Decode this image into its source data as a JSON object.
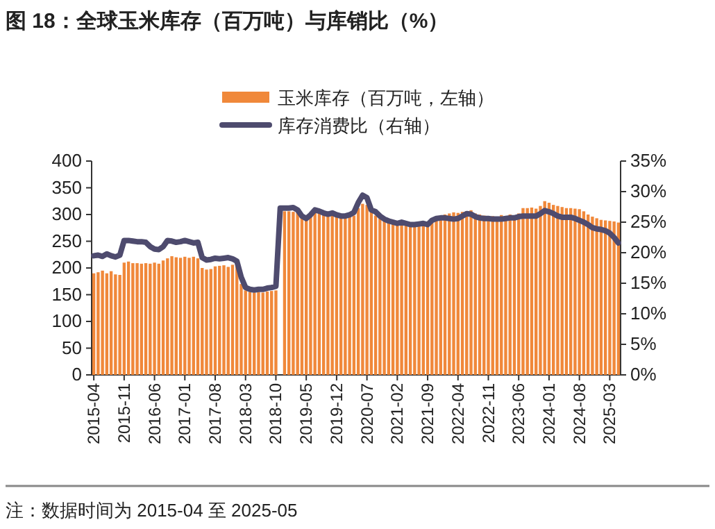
{
  "chart_data": {
    "type": "bar",
    "title": "图 18：全球玉米库存（百万吨）与库销比（%）",
    "categories": [
      "2015-04",
      null,
      null,
      null,
      null,
      null,
      null,
      "2015-11",
      null,
      null,
      null,
      null,
      null,
      null,
      "2016-06",
      null,
      null,
      null,
      null,
      null,
      null,
      "2017-01",
      null,
      null,
      null,
      null,
      null,
      null,
      "2017-08",
      null,
      null,
      null,
      null,
      null,
      null,
      "2018-03",
      null,
      null,
      null,
      null,
      null,
      null,
      "2018-10",
      null,
      null,
      null,
      null,
      null,
      null,
      "2019-05",
      null,
      null,
      null,
      null,
      null,
      null,
      "2019-12",
      null,
      null,
      null,
      null,
      null,
      null,
      "2020-07",
      null,
      null,
      null,
      null,
      null,
      null,
      "2021-02",
      null,
      null,
      null,
      null,
      null,
      null,
      "2021-09",
      null,
      null,
      null,
      null,
      null,
      null,
      "2022-04",
      null,
      null,
      null,
      null,
      null,
      null,
      "2022-11",
      null,
      null,
      null,
      null,
      null,
      null,
      "2023-06",
      null,
      null,
      null,
      null,
      null,
      null,
      "2024-01",
      null,
      null,
      null,
      null,
      null,
      null,
      "2024-08",
      null,
      null,
      null,
      null,
      null,
      null,
      "2025-03",
      null,
      null
    ],
    "series": [
      {
        "name": "玉米库存（百万吨，左轴）",
        "color": "#f0883a",
        "values": [
          190,
          192,
          195,
          190,
          194,
          188,
          187,
          210,
          212,
          209,
          209,
          208,
          209,
          208,
          210,
          208,
          214,
          218,
          222,
          220,
          219,
          221,
          219,
          221,
          218,
          200,
          197,
          198,
          203,
          204,
          205,
          202,
          206,
          204,
          170,
          158,
          155,
          154,
          155,
          154,
          156,
          157,
          158,
          null,
          306,
          306,
          305,
          308,
          300,
          295,
          300,
          304,
          305,
          303,
          300,
          298,
          300,
          297,
          296,
          297,
          298,
          312,
          320,
          318,
          305,
          298,
          293,
          288,
          285,
          283,
          282,
          283,
          282,
          280,
          281,
          282,
          283,
          283,
          290,
          295,
          298,
          300,
          302,
          304,
          303,
          305,
          306,
          308,
          302,
          300,
          298,
          297,
          297,
          296,
          299,
          296,
          300,
          298,
          302,
          312,
          312,
          313,
          311,
          316,
          325,
          322,
          318,
          316,
          314,
          312,
          312,
          311,
          310,
          306,
          300,
          296,
          293,
          290,
          289,
          288,
          287,
          285
        ]
      },
      {
        "name": "库存消费比（右轴）",
        "type": "line",
        "axis": "y2",
        "color": "#4e4b6e",
        "values": [
          19.5,
          19.6,
          19.4,
          19.8,
          19.5,
          19.3,
          19.6,
          22.0,
          22.0,
          21.9,
          21.8,
          21.8,
          21.7,
          21.0,
          20.6,
          20.5,
          21.0,
          22.0,
          21.9,
          21.7,
          21.8,
          22.0,
          21.8,
          21.6,
          21.7,
          19.2,
          18.8,
          18.9,
          19.1,
          19.0,
          19.1,
          19.2,
          19.0,
          18.6,
          16.0,
          14.3,
          14.0,
          13.9,
          14.0,
          14.0,
          14.2,
          14.3,
          14.5,
          27.3,
          27.3,
          27.3,
          27.4,
          27.0,
          26.0,
          25.6,
          26.2,
          27.0,
          26.8,
          26.5,
          26.3,
          26.5,
          26.2,
          26.0,
          26.0,
          26.2,
          26.6,
          28.2,
          29.4,
          29.0,
          27.0,
          26.7,
          26.0,
          25.5,
          25.2,
          25.0,
          24.8,
          25.0,
          24.8,
          24.6,
          24.6,
          24.7,
          24.8,
          24.6,
          25.3,
          25.6,
          25.7,
          25.7,
          25.6,
          25.5,
          25.6,
          26.0,
          26.4,
          26.3,
          25.9,
          25.7,
          25.6,
          25.6,
          25.5,
          25.5,
          25.5,
          25.6,
          25.7,
          25.7,
          25.9,
          26.0,
          26.0,
          26.0,
          26.0,
          26.4,
          26.9,
          26.7,
          26.4,
          26.0,
          25.8,
          25.8,
          25.8,
          25.6,
          25.3,
          25.0,
          24.6,
          24.1,
          23.9,
          23.8,
          23.6,
          23.2,
          22.5,
          21.6
        ]
      }
    ],
    "ylim": [
      0,
      400
    ],
    "yticks": [
      0,
      50,
      100,
      150,
      200,
      250,
      300,
      350,
      400
    ],
    "y2lim": [
      0,
      35
    ],
    "y2ticks": [
      {
        "value": 0,
        "label": "0%"
      },
      {
        "value": 5,
        "label": "5%"
      },
      {
        "value": 10,
        "label": "10%"
      },
      {
        "value": 15,
        "label": "15%"
      },
      {
        "value": 20,
        "label": "20%"
      },
      {
        "value": 25,
        "label": "25%"
      },
      {
        "value": 30,
        "label": "30%"
      },
      {
        "value": 35,
        "label": "35%"
      }
    ],
    "legend": "top",
    "annotations": [
      "注：数据时间为 2015-04 至 2025-05"
    ]
  }
}
